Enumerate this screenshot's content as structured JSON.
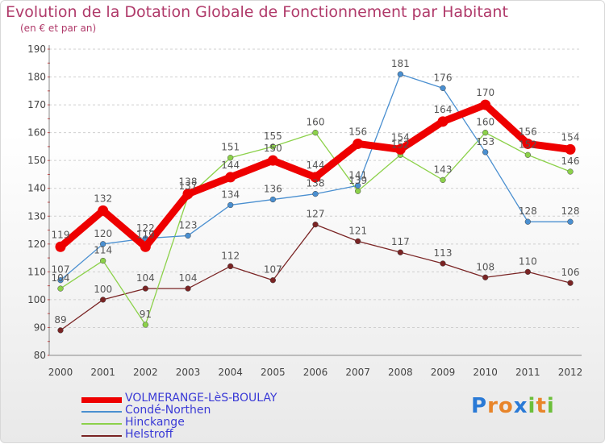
{
  "header": {
    "title": "Evolution de la Dotation Globale de Fonctionnement par Habitant",
    "subtitle": "(en € et par an)"
  },
  "colors": {
    "title": "#b03a6a",
    "legend_text": "#3a3ad6",
    "grid": "#cfcfcf",
    "axis_text": "#444444",
    "label_text": "#555555"
  },
  "logo": {
    "text": "Proxiti",
    "letters": [
      "P",
      "r",
      "o",
      "x",
      "i",
      "t",
      "i"
    ]
  },
  "chart_data": {
    "type": "line",
    "categories": [
      "2000",
      "2001",
      "2002",
      "2003",
      "2004",
      "2005",
      "2006",
      "2007",
      "2008",
      "2009",
      "2010",
      "2011",
      "2012"
    ],
    "ylim": [
      80,
      190
    ],
    "yticks": [
      80,
      90,
      100,
      110,
      120,
      130,
      140,
      150,
      160,
      170,
      180,
      190
    ],
    "grid": "dashed horizontal",
    "legend": "bottom-left",
    "series": [
      {
        "name": "VOLMERANGE-LèS-BOULAY",
        "color": "#ee0000",
        "emphasis": true,
        "values": [
          119,
          132,
          119,
          138,
          144,
          150,
          144,
          156,
          154,
          164,
          170,
          156,
          154
        ]
      },
      {
        "name": "Condé-Northen",
        "color": "#4a8fd0",
        "emphasis": false,
        "values": [
          107,
          120,
          122,
          123,
          134,
          136,
          138,
          141,
          181,
          176,
          153,
          128,
          128
        ]
      },
      {
        "name": "Hinckange",
        "color": "#8cd14a",
        "emphasis": false,
        "values": [
          104,
          114,
          91,
          137,
          151,
          155,
          160,
          139,
          152,
          143,
          160,
          152,
          146
        ]
      },
      {
        "name": "Helstroff",
        "color": "#7a2424",
        "emphasis": false,
        "values": [
          89,
          100,
          104,
          104,
          112,
          107,
          127,
          121,
          117,
          113,
          108,
          110,
          106
        ]
      }
    ]
  }
}
